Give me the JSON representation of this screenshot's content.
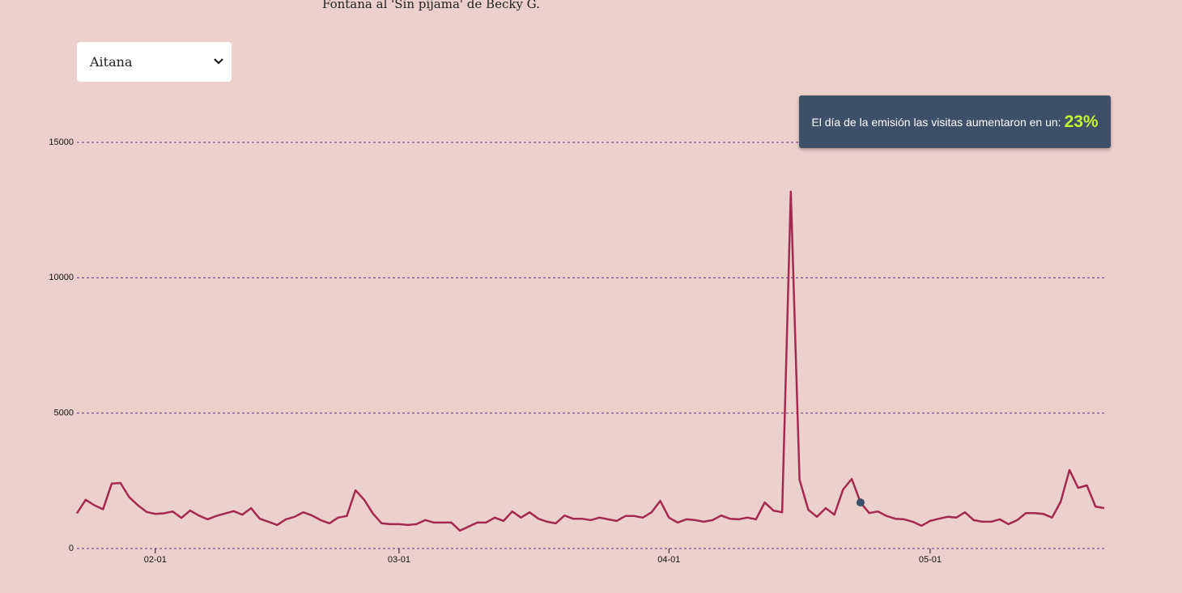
{
  "header": {
    "text": "Fontana al 'Sin pijama' de Becky G."
  },
  "dropdown": {
    "selected": "Aitana"
  },
  "tooltip": {
    "text": "El día de la emisión las visitas aumentaron en un:",
    "value": "23%"
  },
  "chart_data": {
    "type": "line",
    "categories": [
      "01-23",
      "01-24",
      "01-25",
      "01-26",
      "01-27",
      "01-28",
      "01-29",
      "01-30",
      "01-31",
      "02-01",
      "02-02",
      "02-03",
      "02-04",
      "02-05",
      "02-06",
      "02-07",
      "02-08",
      "02-09",
      "02-10",
      "02-11",
      "02-12",
      "02-13",
      "02-14",
      "02-15",
      "02-16",
      "02-17",
      "02-18",
      "02-19",
      "02-20",
      "02-21",
      "02-22",
      "02-23",
      "02-24",
      "02-25",
      "02-26",
      "02-27",
      "02-28",
      "03-01",
      "03-02",
      "03-03",
      "03-04",
      "03-05",
      "03-06",
      "03-07",
      "03-08",
      "03-09",
      "03-10",
      "03-11",
      "03-12",
      "03-13",
      "03-14",
      "03-15",
      "03-16",
      "03-17",
      "03-18",
      "03-19",
      "03-20",
      "03-21",
      "03-22",
      "03-23",
      "03-24",
      "03-25",
      "03-26",
      "03-27",
      "03-28",
      "03-29",
      "03-30",
      "03-31",
      "04-01",
      "04-02",
      "04-03",
      "04-04",
      "04-05",
      "04-06",
      "04-07",
      "04-08",
      "04-09",
      "04-10",
      "04-11",
      "04-12",
      "04-13",
      "04-14",
      "04-15",
      "04-16",
      "04-17",
      "04-18",
      "04-19",
      "04-20",
      "04-21",
      "04-22",
      "04-23",
      "04-24",
      "04-25",
      "04-26",
      "04-27",
      "04-28",
      "04-29",
      "04-30",
      "05-01",
      "05-02",
      "05-03",
      "05-04",
      "05-05",
      "05-06",
      "05-07",
      "05-08",
      "05-09",
      "05-10",
      "05-11",
      "05-12",
      "05-13",
      "05-14",
      "05-15",
      "05-16",
      "05-17",
      "05-18",
      "05-19",
      "05-20",
      "05-21"
    ],
    "values": [
      1300,
      1800,
      1600,
      1450,
      2400,
      2420,
      1900,
      1600,
      1350,
      1280,
      1300,
      1370,
      1130,
      1400,
      1220,
      1080,
      1200,
      1290,
      1380,
      1250,
      1490,
      1100,
      990,
      870,
      1080,
      1170,
      1340,
      1220,
      1050,
      930,
      1140,
      1200,
      2150,
      1800,
      1290,
      930,
      900,
      900,
      870,
      900,
      1050,
      960,
      960,
      960,
      660,
      810,
      960,
      960,
      1140,
      1020,
      1370,
      1140,
      1340,
      1100,
      990,
      930,
      1220,
      1100,
      1100,
      1050,
      1140,
      1080,
      1020,
      1200,
      1200,
      1140,
      1340,
      1760,
      1140,
      960,
      1080,
      1050,
      990,
      1050,
      1220,
      1100,
      1080,
      1140,
      1080,
      1700,
      1400,
      1340,
      13180,
      2540,
      1430,
      1170,
      1490,
      1250,
      2180,
      2570,
      1700,
      1310,
      1370,
      1200,
      1100,
      1080,
      990,
      840,
      1020,
      1100,
      1170,
      1140,
      1340,
      1050,
      990,
      990,
      1080,
      900,
      1050,
      1310,
      1310,
      1280,
      1140,
      1730,
      2900,
      2240,
      2330,
      1550,
      1490
    ],
    "color": "#a3294f",
    "highlight": {
      "x": "04-23",
      "value": 1700,
      "color": "#3d5068"
    },
    "ylim": [
      0,
      15000
    ],
    "yticks": [
      0,
      5000,
      10000,
      15000
    ],
    "xticks": [
      "02-01",
      "03-01",
      "04-01",
      "05-01"
    ],
    "grid": true,
    "grid_color": "#6a2c8c"
  }
}
